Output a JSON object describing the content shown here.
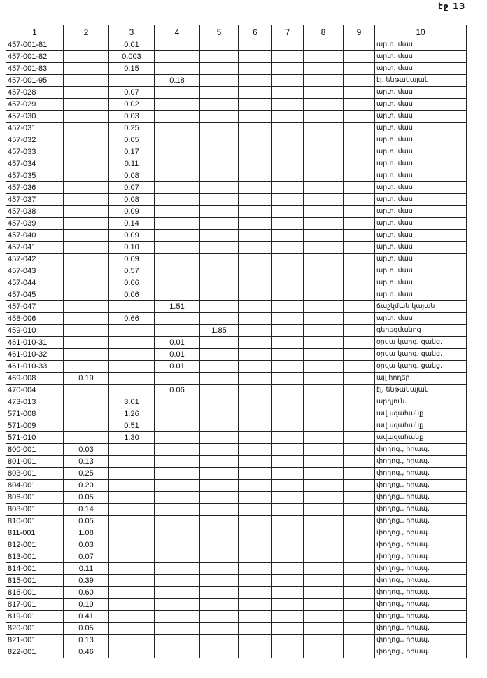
{
  "page_label": "էջ 13",
  "columns": [
    "1",
    "2",
    "3",
    "4",
    "5",
    "6",
    "7",
    "8",
    "9",
    "10"
  ],
  "rows": [
    [
      "457-001-81",
      "",
      "0.01",
      "",
      "",
      "",
      "",
      "",
      "",
      "արտ. մաս"
    ],
    [
      "457-001-82",
      "",
      "0.003",
      "",
      "",
      "",
      "",
      "",
      "",
      "արտ. մաս"
    ],
    [
      "457-001-83",
      "",
      "0.15",
      "",
      "",
      "",
      "",
      "",
      "",
      "արտ. մաս"
    ],
    [
      "457-001-95",
      "",
      "",
      "0.18",
      "",
      "",
      "",
      "",
      "",
      "էլ. ենթակայան"
    ],
    [
      "457-028",
      "",
      "0.07",
      "",
      "",
      "",
      "",
      "",
      "",
      "արտ. մաս"
    ],
    [
      "457-029",
      "",
      "0.02",
      "",
      "",
      "",
      "",
      "",
      "",
      "արտ. մաս"
    ],
    [
      "457-030",
      "",
      "0.03",
      "",
      "",
      "",
      "",
      "",
      "",
      "արտ. մաս"
    ],
    [
      "457-031",
      "",
      "0.25",
      "",
      "",
      "",
      "",
      "",
      "",
      "արտ. մաս"
    ],
    [
      "457-032",
      "",
      "0.05",
      "",
      "",
      "",
      "",
      "",
      "",
      "արտ. մաս"
    ],
    [
      "457-033",
      "",
      "0.17",
      "",
      "",
      "",
      "",
      "",
      "",
      "արտ. մաս"
    ],
    [
      "457-034",
      "",
      "0.11",
      "",
      "",
      "",
      "",
      "",
      "",
      "արտ. մաս"
    ],
    [
      "457-035",
      "",
      "0.08",
      "",
      "",
      "",
      "",
      "",
      "",
      "արտ. մաս"
    ],
    [
      "457-036",
      "",
      "0.07",
      "",
      "",
      "",
      "",
      "",
      "",
      "արտ. մաս"
    ],
    [
      "457-037",
      "",
      "0.08",
      "",
      "",
      "",
      "",
      "",
      "",
      "արտ. մաս"
    ],
    [
      "457-038",
      "",
      "0.09",
      "",
      "",
      "",
      "",
      "",
      "",
      "արտ. մաս"
    ],
    [
      "457-039",
      "",
      "0.14",
      "",
      "",
      "",
      "",
      "",
      "",
      "արտ. մաս"
    ],
    [
      "457-040",
      "",
      "0.09",
      "",
      "",
      "",
      "",
      "",
      "",
      "արտ. մաս"
    ],
    [
      "457-041",
      "",
      "0.10",
      "",
      "",
      "",
      "",
      "",
      "",
      "արտ. մաս"
    ],
    [
      "457-042",
      "",
      "0.09",
      "",
      "",
      "",
      "",
      "",
      "",
      "արտ. մաս"
    ],
    [
      "457-043",
      "",
      "0.57",
      "",
      "",
      "",
      "",
      "",
      "",
      "արտ. մաս"
    ],
    [
      "457-044",
      "",
      "0.06",
      "",
      "",
      "",
      "",
      "",
      "",
      "արտ. մաս"
    ],
    [
      "457-045",
      "",
      "0.06",
      "",
      "",
      "",
      "",
      "",
      "",
      "արտ. մաս"
    ],
    [
      "457-047",
      "",
      "",
      "1.51",
      "",
      "",
      "",
      "",
      "",
      "ճաշկման կայան"
    ],
    [
      "458-006",
      "",
      "0.66",
      "",
      "",
      "",
      "",
      "",
      "",
      "արտ. մաս"
    ],
    [
      "459-010",
      "",
      "",
      "",
      "1.85",
      "",
      "",
      "",
      "",
      "գերեզմանոց"
    ],
    [
      "461-010-31",
      "",
      "",
      "0.01",
      "",
      "",
      "",
      "",
      "",
      "օրվա կարգ. ցանց."
    ],
    [
      "461-010-32",
      "",
      "",
      "0.01",
      "",
      "",
      "",
      "",
      "",
      "օրվա կարգ. ցանց."
    ],
    [
      "461-010-33",
      "",
      "",
      "0.01",
      "",
      "",
      "",
      "",
      "",
      "օրվա կարգ. ցանց."
    ],
    [
      "469-008",
      "0.19",
      "",
      "",
      "",
      "",
      "",
      "",
      "",
      "այլ հողեր"
    ],
    [
      "470-004",
      "",
      "",
      "0.06",
      "",
      "",
      "",
      "",
      "",
      "էլ. ենթակայան"
    ],
    [
      "473-013",
      "",
      "3.01",
      "",
      "",
      "",
      "",
      "",
      "",
      "արդյուն."
    ],
    [
      "571-008",
      "",
      "1.26",
      "",
      "",
      "",
      "",
      "",
      "",
      "ավազահանք"
    ],
    [
      "571-009",
      "",
      "0.51",
      "",
      "",
      "",
      "",
      "",
      "",
      "ավազահանք"
    ],
    [
      "571-010",
      "",
      "1.30",
      "",
      "",
      "",
      "",
      "",
      "",
      "ավազահանք"
    ],
    [
      "800-001",
      "0.03",
      "",
      "",
      "",
      "",
      "",
      "",
      "",
      "փողոց., հրապ."
    ],
    [
      "801-001",
      "0.13",
      "",
      "",
      "",
      "",
      "",
      "",
      "",
      "փողոց., հրապ."
    ],
    [
      "803-001",
      "0.25",
      "",
      "",
      "",
      "",
      "",
      "",
      "",
      "փողոց., հրապ."
    ],
    [
      "804-001",
      "0.20",
      "",
      "",
      "",
      "",
      "",
      "",
      "",
      "փողոց., հրապ."
    ],
    [
      "806-001",
      "0.05",
      "",
      "",
      "",
      "",
      "",
      "",
      "",
      "փողոց., հրապ."
    ],
    [
      "808-001",
      "0.14",
      "",
      "",
      "",
      "",
      "",
      "",
      "",
      "փողոց., հրապ."
    ],
    [
      "810-001",
      "0.05",
      "",
      "",
      "",
      "",
      "",
      "",
      "",
      "փողոց., հրապ."
    ],
    [
      "811-001",
      "1.08",
      "",
      "",
      "",
      "",
      "",
      "",
      "",
      "փողոց., հրապ."
    ],
    [
      "812-001",
      "0.03",
      "",
      "",
      "",
      "",
      "",
      "",
      "",
      "փողոց., հրապ."
    ],
    [
      "813-001",
      "0.07",
      "",
      "",
      "",
      "",
      "",
      "",
      "",
      "փողոց., հրապ."
    ],
    [
      "814-001",
      "0.11",
      "",
      "",
      "",
      "",
      "",
      "",
      "",
      "փողոց., հրապ."
    ],
    [
      "815-001",
      "0.39",
      "",
      "",
      "",
      "",
      "",
      "",
      "",
      "փողոց., հրապ."
    ],
    [
      "816-001",
      "0.60",
      "",
      "",
      "",
      "",
      "",
      "",
      "",
      "փողոց., հրապ."
    ],
    [
      "817-001",
      "0.19",
      "",
      "",
      "",
      "",
      "",
      "",
      "",
      "փողոց., հրապ."
    ],
    [
      "819-001",
      "0.41",
      "",
      "",
      "",
      "",
      "",
      "",
      "",
      "փողոց., հրապ."
    ],
    [
      "820-001",
      "0.05",
      "",
      "",
      "",
      "",
      "",
      "",
      "",
      "փողոց., հրապ."
    ],
    [
      "821-001",
      "0.13",
      "",
      "",
      "",
      "",
      "",
      "",
      "",
      "փողոց., հրապ."
    ],
    [
      "822-001",
      "0.46",
      "",
      "",
      "",
      "",
      "",
      "",
      "",
      "փողոց., հրապ."
    ]
  ]
}
